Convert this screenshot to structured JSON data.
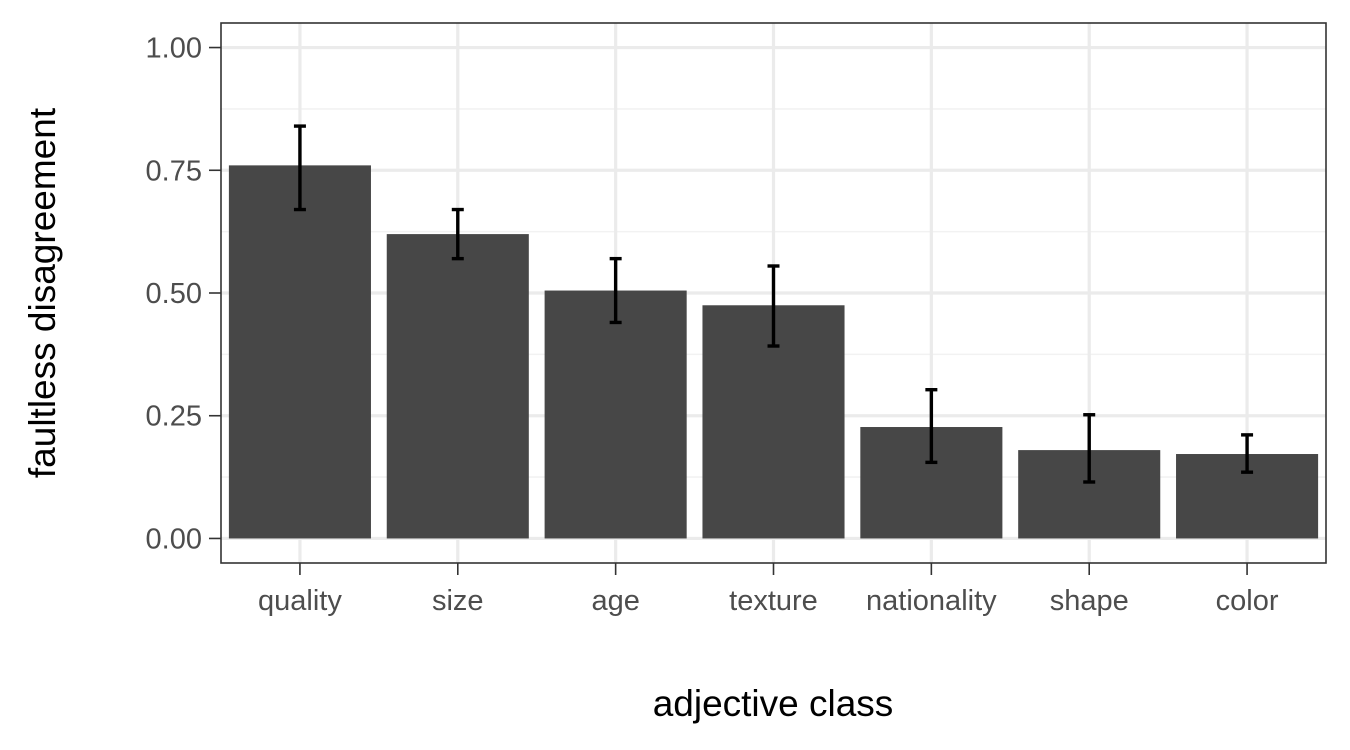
{
  "chart_data": {
    "type": "bar",
    "title": "",
    "xlabel": "adjective class",
    "ylabel": "faultless disagreement",
    "categories": [
      "quality",
      "size",
      "age",
      "texture",
      "nationality",
      "shape",
      "color"
    ],
    "values": [
      0.76,
      0.62,
      0.505,
      0.475,
      0.227,
      0.18,
      0.172
    ],
    "error_low": [
      0.67,
      0.57,
      0.44,
      0.392,
      0.155,
      0.115,
      0.135
    ],
    "error_high": [
      0.84,
      0.67,
      0.57,
      0.555,
      0.303,
      0.252,
      0.211
    ],
    "ylim": [
      -0.05,
      1.05
    ],
    "yticks": [
      0,
      0.25,
      0.5,
      0.75,
      1
    ],
    "ytick_labels": [
      "0.00",
      "0.25",
      "0.50",
      "0.75",
      "1.00"
    ],
    "grid": true,
    "legend": "none",
    "colors": {
      "bar": "#474747",
      "error_bar": "#000000",
      "grid_major": "#ebebeb",
      "grid_minor": "#f2f2f2",
      "panel_border": "#333333",
      "tick_text": "#4d4d4d"
    }
  }
}
